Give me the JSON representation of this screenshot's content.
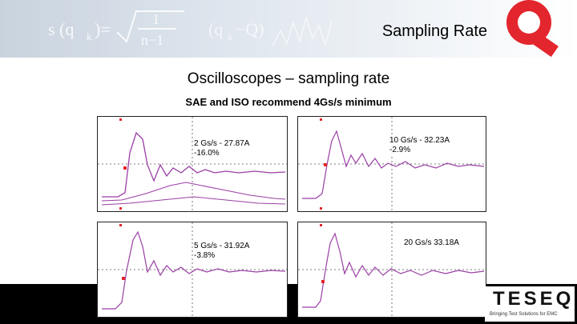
{
  "slide": {
    "title": "Sampling Rate",
    "heading": "Oscilloscopes – sampling rate",
    "subheading": "SAE and ISO recommend 4Gs/s minimum"
  },
  "banner": {
    "formula_text": "s (qk)= 1 / n−1 (qk − Q)"
  },
  "panels": [
    {
      "label": "2 Gs/s - 27.87A\n-16.0%"
    },
    {
      "label": "10 Gs/s - 32.23A\n-2.9%"
    },
    {
      "label": "5 Gs/s - 31.92A\n-3.8%"
    },
    {
      "label": "20 Gs/s 33.18A"
    }
  ],
  "brand": {
    "name": "TESEQ",
    "tagline": "Bringing Test Solutions for EMC",
    "accent_color": "#e3262d",
    "trace_color": "#9b3fa6"
  }
}
